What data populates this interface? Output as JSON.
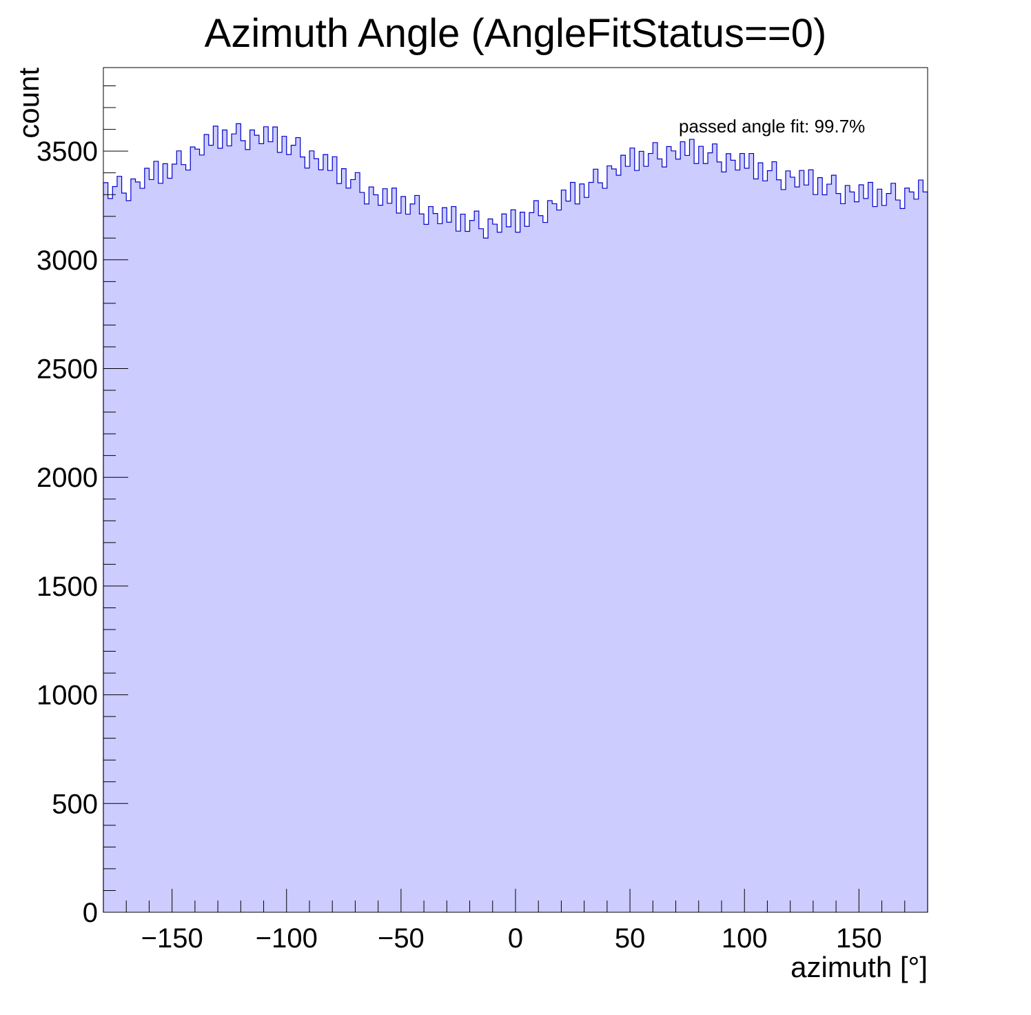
{
  "chart_data": {
    "type": "bar",
    "style": "histogram-step-filled",
    "title": "Azimuth Angle (AngleFitStatus==0)",
    "xlabel": "azimuth [°]",
    "ylabel": "count",
    "xlim": [
      -180,
      180
    ],
    "ylim": [
      0,
      3884
    ],
    "bin_width": 2,
    "x_ticks": [
      -150,
      -100,
      -50,
      0,
      50,
      100,
      150
    ],
    "x_tick_labels": [
      "−150",
      "−100",
      "−50",
      "0",
      "50",
      "100",
      "150"
    ],
    "y_ticks": [
      0,
      500,
      1000,
      1500,
      2000,
      2500,
      3000,
      3500
    ],
    "y_tick_labels": [
      "0",
      "500",
      "1000",
      "1500",
      "2000",
      "2500",
      "3000",
      "3500"
    ],
    "annotation": "passed angle fit: 99.7%",
    "fill_color": "#ccccff",
    "line_color": "#0000cc",
    "grid": false,
    "values": [
      3355,
      3282,
      3337,
      3384,
      3307,
      3272,
      3372,
      3358,
      3329,
      3421,
      3369,
      3453,
      3352,
      3442,
      3375,
      3440,
      3501,
      3438,
      3413,
      3519,
      3509,
      3482,
      3576,
      3527,
      3615,
      3513,
      3597,
      3524,
      3579,
      3626,
      3548,
      3507,
      3597,
      3573,
      3534,
      3612,
      3543,
      3611,
      3494,
      3568,
      3484,
      3527,
      3562,
      3473,
      3422,
      3501,
      3465,
      3414,
      3484,
      3411,
      3474,
      3351,
      3419,
      3330,
      3369,
      3401,
      3310,
      3257,
      3335,
      3299,
      3251,
      3327,
      3260,
      3330,
      3215,
      3291,
      3210,
      3257,
      3296,
      3211,
      3163,
      3245,
      3213,
      3166,
      3240,
      3173,
      3245,
      3132,
      3210,
      3131,
      3181,
      3224,
      3143,
      3100,
      3188,
      3164,
      3127,
      3211,
      3152,
      3230,
      3127,
      3219,
      3154,
      3217,
      3272,
      3203,
      3172,
      3272,
      3258,
      3229,
      3321,
      3270,
      3356,
      3257,
      3349,
      3287,
      3356,
      3417,
      3354,
      3329,
      3432,
      3418,
      3389,
      3481,
      3430,
      3514,
      3411,
      3499,
      3430,
      3489,
      3539,
      3464,
      3427,
      3521,
      3501,
      3463,
      3543,
      3480,
      3554,
      3443,
      3522,
      3443,
      3492,
      3533,
      3450,
      3404,
      3488,
      3458,
      3413,
      3489,
      3421,
      3489,
      3372,
      3446,
      3363,
      3410,
      3451,
      3368,
      3323,
      3409,
      3380,
      3335,
      3411,
      3344,
      3414,
      3300,
      3378,
      3299,
      3348,
      3389,
      3305,
      3258,
      3342,
      3312,
      3267,
      3345,
      3282,
      3356,
      3245,
      3325,
      3250,
      3305,
      3352,
      3275,
      3236,
      3330,
      3312,
      3279,
      3367,
      3312
    ]
  }
}
